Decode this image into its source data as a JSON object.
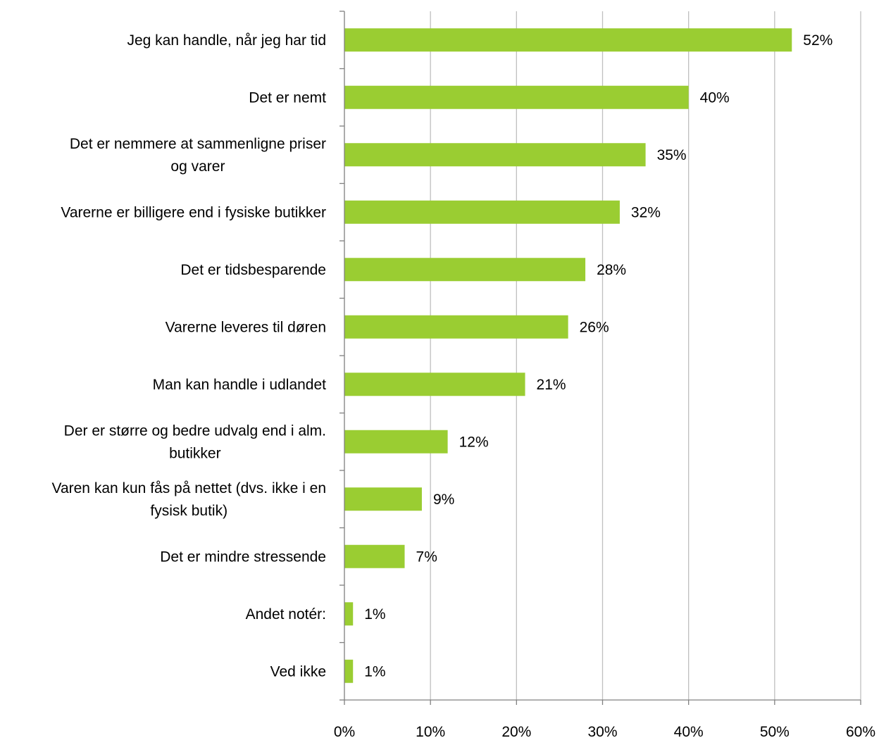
{
  "chart_data": {
    "type": "bar",
    "orientation": "horizontal",
    "title": "",
    "xlabel": "",
    "ylabel": "",
    "categories": [
      [
        "Jeg kan handle, når jeg har tid"
      ],
      [
        "Det er nemt"
      ],
      [
        "Det er nemmere at sammenligne priser",
        "og varer"
      ],
      [
        "Varerne er billigere end i fysiske butikker"
      ],
      [
        "Det er tidsbesparende"
      ],
      [
        "Varerne leveres til døren"
      ],
      [
        "Man kan handle i udlandet"
      ],
      [
        "Der er større og bedre udvalg end i alm.",
        "butikker"
      ],
      [
        "Varen kan kun fås på nettet (dvs. ikke i en",
        "fysisk butik)"
      ],
      [
        "Det er mindre stressende"
      ],
      [
        "Andet notér:"
      ],
      [
        "Ved ikke"
      ]
    ],
    "values": [
      52,
      40,
      35,
      32,
      28,
      26,
      21,
      12,
      9,
      7,
      1,
      1
    ],
    "value_labels": [
      "52%",
      "40%",
      "35%",
      "32%",
      "28%",
      "26%",
      "21%",
      "12%",
      "9%",
      "7%",
      "1%",
      "1%"
    ],
    "xlim": [
      0,
      60
    ],
    "x_ticks": [
      0,
      10,
      20,
      30,
      40,
      50,
      60
    ],
    "x_tick_labels": [
      "0%",
      "10%",
      "20%",
      "30%",
      "40%",
      "50%",
      "60%"
    ],
    "grid": "vertical",
    "legend": "none",
    "bar_color": "#9ACD32",
    "grid_color": "#BFBFBF",
    "axis_color": "#808080"
  }
}
